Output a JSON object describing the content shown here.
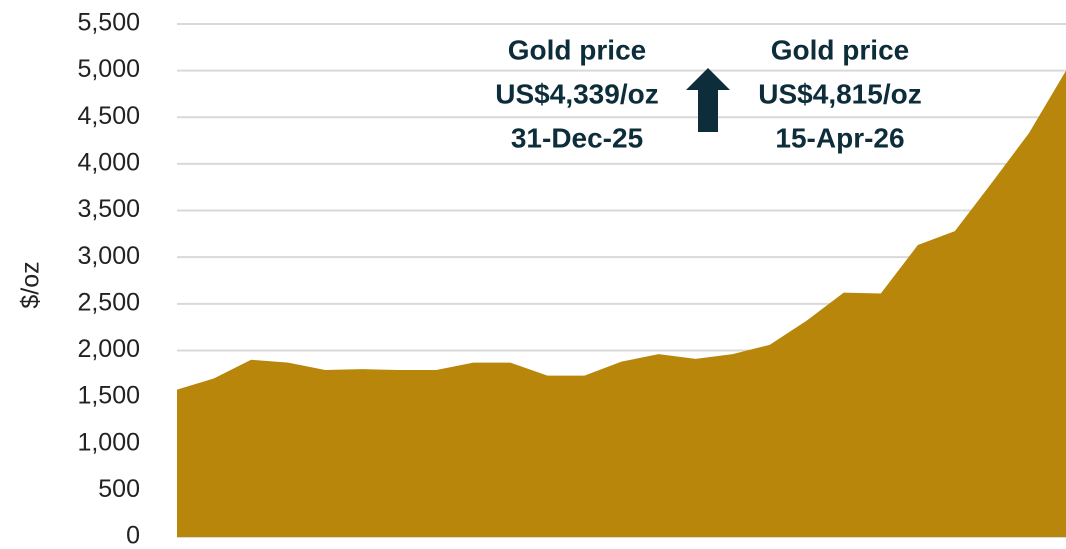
{
  "chart_data": {
    "type": "area",
    "y_label": "$/oz",
    "categories": [
      null,
      null,
      null,
      null,
      null,
      null,
      null,
      null,
      null,
      null,
      null,
      null,
      null,
      null,
      null,
      null,
      null,
      null,
      null,
      null,
      null,
      null,
      null,
      null,
      null
    ],
    "series": [
      {
        "color": "#b8860b",
        "values": [
          1580,
          1700,
          1900,
          1870,
          1790,
          1800,
          1790,
          1790,
          1870,
          1870,
          1730,
          1730,
          1880,
          1960,
          1910,
          1960,
          2060,
          2320,
          2620,
          2610,
          3130,
          3280,
          3800,
          4330,
          5000
        ]
      }
    ],
    "ylim": [
      0,
      5500
    ],
    "yticks": [
      0,
      500,
      {
        "value": 1000,
        "label": "1,000"
      },
      {
        "value": 1500,
        "label": "1,500"
      },
      {
        "value": 2000,
        "label": "2,000"
      },
      {
        "value": 2500,
        "label": "2,500"
      },
      {
        "value": 3000,
        "label": "3,000"
      },
      {
        "value": 3500,
        "label": "3,500"
      },
      {
        "value": 4000,
        "label": "4,000"
      },
      {
        "value": 4500,
        "label": "4,500"
      },
      {
        "value": 5000,
        "label": "5,000"
      },
      {
        "value": 5500,
        "label": "5,500"
      }
    ],
    "grid": true,
    "annotations": [
      {
        "lines": [
          "Gold price",
          "US$4,339/oz",
          "31-Dec-25"
        ]
      },
      {
        "lines": [
          "Gold price",
          "US$4,815/oz",
          "15-Apr-26"
        ]
      }
    ]
  }
}
